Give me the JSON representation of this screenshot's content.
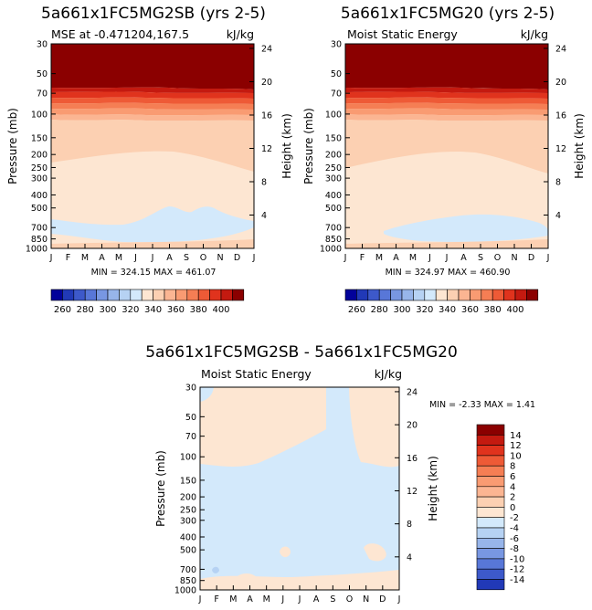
{
  "colors": {
    "warm": [
      "#fde6d2",
      "#fcd0b2",
      "#fbb592",
      "#f99b72",
      "#f57e54",
      "#ee5a36",
      "#e0331d",
      "#c41a10",
      "#8b0000"
    ],
    "cool": [
      "#d3e9fb",
      "#b6d2f3",
      "#97b5ea",
      "#7897e2",
      "#5877d8",
      "#3d59ca",
      "#2139b7",
      "#02029a"
    ],
    "diff_warm": "#fde6d2",
    "diff_cool": "#d3e9fb"
  },
  "chart_data": [
    {
      "type": "contour",
      "title": "5a661x1FC5MG2SB (yrs 2-5)",
      "subtitle_left": "MSE at -0.471204,167.5",
      "subtitle_right": "kJ/kg",
      "ylabel_left": "Pressure (mb)",
      "ylabel_right": "Height (km)",
      "x_ticks": [
        "J",
        "F",
        "M",
        "A",
        "M",
        "J",
        "J",
        "A",
        "S",
        "O",
        "N",
        "D",
        "J"
      ],
      "pressure_ticks": [
        30,
        50,
        70,
        100,
        150,
        200,
        250,
        300,
        400,
        500,
        700,
        850,
        1000
      ],
      "pressure_labels": [
        "30",
        "50",
        "70",
        "100",
        "150",
        "200",
        "250",
        "300",
        "400",
        "500",
        "700",
        "850",
        "1000"
      ],
      "height_ticks": [
        4,
        8,
        12,
        16,
        20,
        24
      ],
      "height_labels": [
        "4",
        "8",
        "12",
        "16",
        "20",
        "24"
      ],
      "min_label": "MIN = 324.15 MAX = 461.07",
      "min": 324.15,
      "max": 461.07,
      "colorbar_labels": [
        "260",
        "280",
        "300",
        "320",
        "340",
        "360",
        "380",
        "400"
      ]
    },
    {
      "type": "contour",
      "title": "5a661x1FC5MG20 (yrs 2-5)",
      "subtitle_left": "Moist Static Energy",
      "subtitle_right": "kJ/kg",
      "ylabel_left": "Pressure (mb)",
      "ylabel_right": "Height (km)",
      "x_ticks": [
        "J",
        "F",
        "M",
        "A",
        "M",
        "J",
        "J",
        "A",
        "S",
        "O",
        "N",
        "D",
        "J"
      ],
      "pressure_ticks": [
        30,
        50,
        70,
        100,
        150,
        200,
        250,
        300,
        400,
        500,
        700,
        850,
        1000
      ],
      "pressure_labels": [
        "30",
        "50",
        "70",
        "100",
        "150",
        "200",
        "250",
        "300",
        "400",
        "500",
        "700",
        "850",
        "1000"
      ],
      "height_ticks": [
        4,
        8,
        12,
        16,
        20,
        24
      ],
      "height_labels": [
        "4",
        "8",
        "12",
        "16",
        "20",
        "24"
      ],
      "min_label": "MIN = 324.97 MAX = 460.90",
      "min": 324.97,
      "max": 460.9,
      "colorbar_labels": [
        "260",
        "280",
        "300",
        "320",
        "340",
        "360",
        "380",
        "400"
      ]
    },
    {
      "type": "contour",
      "title": "5a661x1FC5MG2SB - 5a661x1FC5MG20",
      "subtitle_left": "Moist Static Energy",
      "subtitle_right": "kJ/kg",
      "ylabel_left": "Pressure (mb)",
      "ylabel_right": "Height (km)",
      "x_ticks": [
        "J",
        "F",
        "M",
        "A",
        "M",
        "J",
        "J",
        "A",
        "S",
        "O",
        "N",
        "D",
        "J"
      ],
      "pressure_ticks": [
        30,
        50,
        70,
        100,
        150,
        200,
        250,
        300,
        400,
        500,
        700,
        850,
        1000
      ],
      "pressure_labels": [
        "30",
        "50",
        "70",
        "100",
        "150",
        "200",
        "250",
        "300",
        "400",
        "500",
        "700",
        "850",
        "1000"
      ],
      "height_ticks": [
        4,
        8,
        12,
        16,
        20,
        24
      ],
      "height_labels": [
        "4",
        "8",
        "12",
        "16",
        "20",
        "24"
      ],
      "min_label": "MIN =   -2.33 MAX =    1.41",
      "min": -2.33,
      "max": 1.41,
      "colorbar_labels": [
        "14",
        "12",
        "10",
        "8",
        "6",
        "4",
        "2",
        "0",
        "-2",
        "-4",
        "-6",
        "-8",
        "-10",
        "-12",
        "-14"
      ]
    }
  ]
}
